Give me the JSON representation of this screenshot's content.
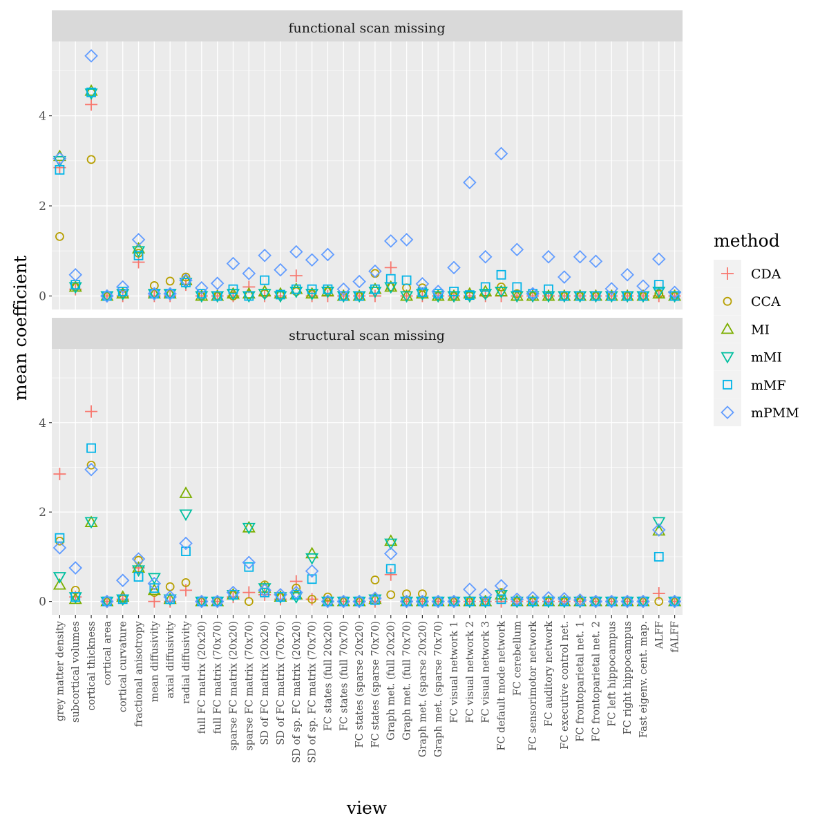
{
  "chart_data": {
    "type": "scatter",
    "xlabel": "view",
    "ylabel": "mean coefficient",
    "ylim": [
      -0.3,
      5.65
    ],
    "yticks": [
      0,
      2,
      4
    ],
    "grid": true,
    "legend": {
      "title": "method",
      "position": "right"
    },
    "categories": [
      "grey matter density",
      "subcortical volumes",
      "cortical thickness",
      "cortical area",
      "cortical curvature",
      "fractional anisotropy",
      "mean diffusivity",
      "axial diffusivity",
      "radial diffusivity",
      "full FC matrix (20x20)",
      "full FC matrix (70x70)",
      "sparse FC matrix (20x20)",
      "sparse FC matrix (70x70)",
      "SD of FC matrix (20x20)",
      "SD of FC matrix (70x70)",
      "SD of sp. FC matrix (20x20)",
      "SD of sp. FC matrix (70x70)",
      "FC states (full 20x20)",
      "FC states (full 70x70)",
      "FC states (sparse 20x20)",
      "FC states (sparse 70x70)",
      "Graph met. (full 20x20)",
      "Graph met. (full 70x70)",
      "Graph met. (sparse 20x20)",
      "Graph met. (sparse 70x70)",
      "FC visual network 1",
      "FC visual network 2",
      "FC visual network 3",
      "FC default mode network",
      "FC cerebellum",
      "FC sensorimotor network",
      "FC auditory network",
      "FC executive control net.",
      "FC frontoparietal net. 1",
      "FC frontoparietal net. 2",
      "FC left hippocampus",
      "FC right hippocampus",
      "Fast eigenv. cent. map.",
      "ALFF",
      "fALFF"
    ],
    "series": [
      {
        "name": "CDA",
        "color": "#F8766D",
        "shape": "plus"
      },
      {
        "name": "CCA",
        "color": "#B79F00",
        "shape": "circle"
      },
      {
        "name": "MI",
        "color": "#7CAE00",
        "shape": "triangle-up"
      },
      {
        "name": "mMI",
        "color": "#00BFA0",
        "shape": "triangle-down"
      },
      {
        "name": "mMF",
        "color": "#00B4E8",
        "shape": "square"
      },
      {
        "name": "mPMM",
        "color": "#619CFF",
        "shape": "diamond"
      }
    ],
    "panels": [
      {
        "strip": "functional scan missing",
        "values": {
          "CDA": [
            2.85,
            0.15,
            4.25,
            0,
            0,
            0.75,
            0,
            0,
            0.25,
            0,
            0,
            0,
            0.2,
            0,
            0,
            0.45,
            0,
            0,
            0,
            0,
            0,
            0.63,
            0,
            0,
            0,
            0,
            0,
            0,
            0,
            0,
            0,
            0,
            0,
            0,
            0,
            0,
            0,
            0,
            0,
            0
          ],
          "CCA": [
            1.32,
            0.2,
            3.03,
            0,
            0.05,
            0.95,
            0.23,
            0.33,
            0.42,
            0,
            0,
            0,
            0.03,
            0.05,
            0.02,
            0.1,
            0.05,
            0.1,
            0,
            0,
            0.5,
            0.2,
            0.18,
            0.18,
            0,
            0,
            0,
            0.05,
            0.2,
            0.05,
            0,
            0,
            0,
            0,
            0,
            0,
            0,
            0,
            0.05,
            0
          ],
          "MI": [
            3.1,
            0.2,
            4.55,
            0,
            0.05,
            1.05,
            0.05,
            0.05,
            0.35,
            0,
            0,
            0.05,
            0.05,
            0.1,
            0.05,
            0.15,
            0.05,
            0.1,
            0,
            0,
            0.15,
            0.2,
            0,
            0.05,
            0,
            0,
            0.05,
            0.1,
            0.1,
            0,
            0,
            0,
            0,
            0,
            0,
            0,
            0,
            0,
            0.05,
            0
          ],
          "mMI": [
            3.0,
            0.2,
            4.5,
            0,
            0.05,
            1.0,
            0.05,
            0.05,
            0.3,
            0,
            0,
            0.05,
            0,
            0.05,
            0,
            0.1,
            0.05,
            0.1,
            0,
            0,
            0.1,
            0.2,
            0,
            0.05,
            0,
            0,
            0,
            0.05,
            0.1,
            0,
            0,
            0,
            0,
            0,
            0,
            0,
            0,
            0,
            0.1,
            0
          ],
          "mMF": [
            2.8,
            0.25,
            4.52,
            0,
            0.1,
            0.9,
            0.05,
            0.05,
            0.3,
            0.05,
            0,
            0.15,
            0,
            0.35,
            0.03,
            0.15,
            0.15,
            0.15,
            0,
            0,
            0.15,
            0.38,
            0.35,
            0.08,
            0.05,
            0.1,
            0.02,
            0.2,
            0.47,
            0.2,
            0.05,
            0.15,
            0,
            0,
            0,
            0,
            0,
            0,
            0.25,
            0
          ],
          "mPMM": [
            3.05,
            0.47,
            5.33,
            0,
            0.2,
            1.25,
            0.05,
            0.05,
            0.35,
            0.18,
            0.28,
            0.72,
            0.5,
            0.9,
            0.58,
            0.98,
            0.8,
            0.92,
            0.15,
            0.32,
            0.55,
            1.22,
            1.25,
            0.27,
            0.1,
            0.63,
            2.52,
            0.87,
            3.16,
            1.03,
            0.05,
            0.87,
            0.42,
            0.87,
            0.77,
            0.16,
            0.47,
            0.22,
            0.82,
            0.08
          ]
        }
      },
      {
        "strip": "structural scan missing",
        "values": {
          "CDA": [
            2.85,
            0.1,
            4.25,
            0,
            0.05,
            0.75,
            0,
            0,
            0.25,
            0,
            0,
            0.1,
            0.2,
            0.15,
            0.05,
            0.45,
            0.05,
            0,
            0,
            0,
            0,
            0.6,
            0,
            0,
            0,
            0,
            0,
            0,
            0,
            0,
            0,
            0,
            0,
            0,
            0,
            0,
            0,
            0,
            0.18,
            0
          ],
          "CCA": [
            1.35,
            0.25,
            3.05,
            0,
            0.05,
            0.92,
            0.2,
            0.33,
            0.42,
            0,
            0,
            0.15,
            0,
            0.37,
            0.1,
            0.3,
            0.05,
            0.1,
            0,
            0,
            0.48,
            0.15,
            0.17,
            0.17,
            0,
            0,
            0,
            0,
            0.2,
            0,
            0,
            0,
            0,
            0,
            0,
            0,
            0,
            0,
            0,
            0
          ],
          "MI": [
            0.37,
            0.05,
            1.77,
            0,
            0.1,
            0.75,
            0.25,
            0.05,
            2.42,
            0,
            0,
            0.15,
            1.65,
            0.3,
            0.1,
            0.15,
            1.07,
            0,
            0,
            0,
            0.05,
            1.35,
            0,
            0,
            0,
            0,
            0,
            0,
            0.15,
            0,
            0,
            0,
            0,
            0,
            0,
            0,
            0,
            0,
            1.58,
            0
          ],
          "mMI": [
            0.55,
            0.1,
            1.78,
            0,
            0.05,
            0.7,
            0.53,
            0.05,
            1.95,
            0,
            0,
            0.15,
            1.65,
            0.3,
            0.1,
            0.1,
            0.97,
            0,
            0,
            0,
            0.05,
            1.3,
            0,
            0,
            0,
            0,
            0,
            0,
            0.15,
            0,
            0,
            0,
            0,
            0,
            0,
            0,
            0,
            0,
            1.78,
            0
          ],
          "mMF": [
            1.42,
            0.1,
            3.43,
            0,
            0.05,
            0.55,
            0.3,
            0.05,
            1.12,
            0,
            0,
            0.15,
            0.77,
            0.2,
            0.1,
            0.15,
            0.5,
            0,
            0,
            0,
            0.03,
            0.73,
            0,
            0,
            0,
            0,
            0,
            0,
            0.05,
            0,
            0,
            0,
            0,
            0,
            0,
            0,
            0,
            0,
            1.0,
            0
          ],
          "mPMM": [
            1.2,
            0.75,
            2.95,
            0,
            0.47,
            0.95,
            0.4,
            0.1,
            1.3,
            0,
            0,
            0.2,
            0.87,
            0.25,
            0.15,
            0.2,
            0.68,
            0,
            0,
            0,
            0.07,
            1.07,
            0,
            0,
            0,
            0,
            0.27,
            0.15,
            0.35,
            0.05,
            0.08,
            0.08,
            0.06,
            0.03,
            0,
            0,
            0,
            0,
            1.6,
            0
          ]
        }
      }
    ]
  }
}
